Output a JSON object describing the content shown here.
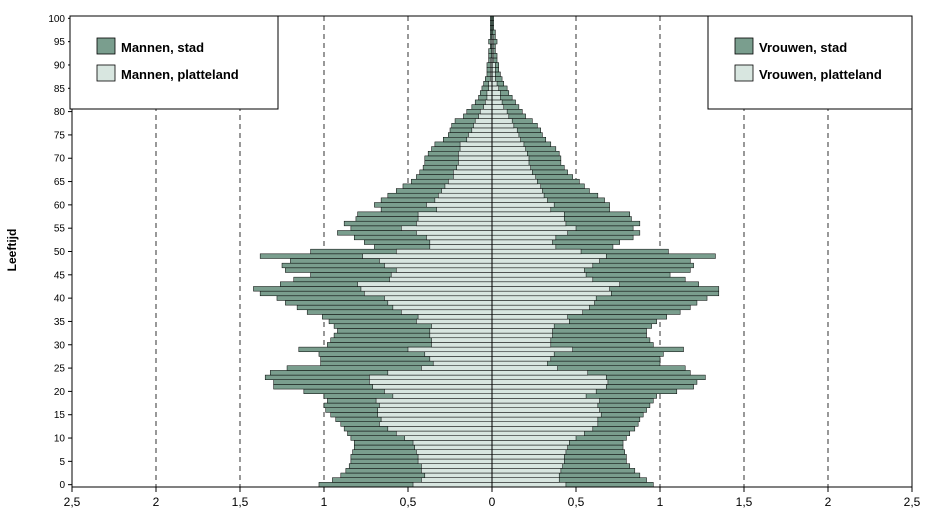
{
  "chart_data": {
    "type": "bar",
    "orientation": "horizontal",
    "layout": "population-pyramid",
    "ylabel": "Leeftijd",
    "y_ticks": [
      "0",
      "5",
      "10",
      "15",
      "20",
      "25",
      "30",
      "35",
      "40",
      "45",
      "50",
      "55",
      "60",
      "65",
      "70",
      "75",
      "80",
      "85",
      "90",
      "95",
      "100"
    ],
    "x_ticks_left": [
      "2,5",
      "2",
      "1,5",
      "1",
      "0,5",
      "0"
    ],
    "x_ticks_right": [
      "0,5",
      "1",
      "1,5",
      "2",
      "2,5"
    ],
    "xlim": [
      -2.5,
      2.5
    ],
    "ylim": [
      0,
      100
    ],
    "grid": "vertical dashed lines at 0.5 intervals",
    "legend_left": [
      {
        "label": "Mannen, stad",
        "color": "#7a9e8e"
      },
      {
        "label": "Mannen, platteland",
        "color": "#d8e6e0"
      }
    ],
    "legend_right": [
      {
        "label": "Vrouwen, stad",
        "color": "#7a9e8e"
      },
      {
        "label": "Vrouwen, platteland",
        "color": "#d8e6e0"
      }
    ],
    "colors": {
      "stad": "#7a9e8e",
      "platteland": "#d8e6e0",
      "edge": "#000000"
    },
    "ages": [
      0,
      1,
      2,
      3,
      4,
      5,
      6,
      7,
      8,
      9,
      10,
      11,
      12,
      13,
      14,
      15,
      16,
      17,
      18,
      19,
      20,
      21,
      22,
      23,
      24,
      25,
      26,
      27,
      28,
      29,
      30,
      31,
      32,
      33,
      34,
      35,
      36,
      37,
      38,
      39,
      40,
      41,
      42,
      43,
      44,
      45,
      46,
      47,
      48,
      49,
      50,
      51,
      52,
      53,
      54,
      55,
      56,
      57,
      58,
      59,
      60,
      61,
      62,
      63,
      64,
      65,
      66,
      67,
      68,
      69,
      70,
      71,
      72,
      73,
      74,
      75,
      76,
      77,
      78,
      79,
      80,
      81,
      82,
      83,
      84,
      85,
      86,
      87,
      88,
      89,
      90,
      91,
      92,
      93,
      94,
      95,
      96,
      97,
      98,
      99,
      100
    ],
    "series": [
      {
        "name": "Mannen, stad",
        "side": "left",
        "values": [
          1.03,
          0.95,
          0.9,
          0.87,
          0.85,
          0.84,
          0.84,
          0.83,
          0.82,
          0.82,
          0.84,
          0.86,
          0.88,
          0.9,
          0.93,
          0.96,
          0.99,
          1.0,
          0.98,
          1.0,
          1.12,
          1.3,
          1.3,
          1.35,
          1.32,
          1.22,
          1.02,
          1.02,
          1.03,
          1.15,
          0.98,
          0.96,
          0.94,
          0.92,
          0.94,
          0.97,
          1.01,
          1.1,
          1.16,
          1.23,
          1.28,
          1.38,
          1.42,
          1.26,
          1.18,
          1.08,
          1.23,
          1.25,
          1.2,
          1.38,
          1.08,
          0.7,
          0.76,
          0.82,
          0.92,
          0.84,
          0.88,
          0.81,
          0.8,
          0.66,
          0.7,
          0.66,
          0.62,
          0.57,
          0.53,
          0.48,
          0.45,
          0.43,
          0.41,
          0.4,
          0.4,
          0.38,
          0.36,
          0.34,
          0.29,
          0.26,
          0.25,
          0.24,
          0.22,
          0.17,
          0.15,
          0.12,
          0.1,
          0.08,
          0.07,
          0.06,
          0.05,
          0.04,
          0.03,
          0.03,
          0.03,
          0.02,
          0.02,
          0.02,
          0.01,
          0.02,
          0.01,
          0.01,
          0.01,
          0.01,
          0.01
        ]
      },
      {
        "name": "Mannen, platteland",
        "side": "left",
        "values": [
          0.47,
          0.42,
          0.4,
          0.42,
          0.42,
          0.44,
          0.44,
          0.45,
          0.46,
          0.47,
          0.52,
          0.57,
          0.62,
          0.67,
          0.66,
          0.68,
          0.68,
          0.67,
          0.69,
          0.59,
          0.64,
          0.71,
          0.73,
          0.73,
          0.62,
          0.42,
          0.35,
          0.37,
          0.4,
          0.5,
          0.36,
          0.36,
          0.37,
          0.37,
          0.36,
          0.45,
          0.44,
          0.54,
          0.59,
          0.62,
          0.64,
          0.76,
          0.78,
          0.8,
          0.61,
          0.6,
          0.57,
          0.64,
          0.67,
          0.77,
          0.57,
          0.37,
          0.37,
          0.39,
          0.45,
          0.54,
          0.45,
          0.44,
          0.44,
          0.33,
          0.39,
          0.34,
          0.32,
          0.3,
          0.28,
          0.26,
          0.23,
          0.23,
          0.21,
          0.2,
          0.2,
          0.2,
          0.19,
          0.19,
          0.15,
          0.14,
          0.12,
          0.11,
          0.1,
          0.08,
          0.07,
          0.05,
          0.04,
          0.03,
          0.03,
          0.02,
          0.02,
          0.01,
          0.01,
          0.01,
          0.01,
          0.01,
          0.0,
          0.0,
          0.0,
          0.01,
          0.0,
          0.0,
          0.0,
          0.0,
          0.0
        ]
      },
      {
        "name": "Vrouwen, stad",
        "side": "right",
        "values": [
          0.96,
          0.92,
          0.88,
          0.85,
          0.82,
          0.8,
          0.8,
          0.79,
          0.78,
          0.78,
          0.8,
          0.82,
          0.85,
          0.87,
          0.88,
          0.9,
          0.92,
          0.94,
          0.96,
          0.98,
          1.1,
          1.2,
          1.22,
          1.27,
          1.18,
          1.15,
          1.0,
          1.0,
          1.02,
          1.14,
          0.96,
          0.94,
          0.92,
          0.92,
          0.95,
          0.98,
          1.04,
          1.12,
          1.18,
          1.22,
          1.28,
          1.35,
          1.35,
          1.23,
          1.15,
          1.06,
          1.18,
          1.2,
          1.18,
          1.33,
          1.05,
          0.72,
          0.76,
          0.84,
          0.88,
          0.84,
          0.88,
          0.83,
          0.82,
          0.7,
          0.7,
          0.67,
          0.63,
          0.58,
          0.55,
          0.52,
          0.48,
          0.45,
          0.43,
          0.41,
          0.41,
          0.4,
          0.38,
          0.35,
          0.32,
          0.3,
          0.29,
          0.27,
          0.24,
          0.2,
          0.18,
          0.16,
          0.14,
          0.12,
          0.1,
          0.09,
          0.07,
          0.06,
          0.05,
          0.04,
          0.04,
          0.03,
          0.03,
          0.02,
          0.02,
          0.03,
          0.02,
          0.02,
          0.01,
          0.01,
          0.01
        ]
      },
      {
        "name": "Vrouwen, platteland",
        "side": "right",
        "values": [
          0.44,
          0.4,
          0.4,
          0.41,
          0.42,
          0.43,
          0.43,
          0.44,
          0.45,
          0.46,
          0.5,
          0.55,
          0.6,
          0.63,
          0.63,
          0.65,
          0.64,
          0.63,
          0.64,
          0.56,
          0.62,
          0.68,
          0.69,
          0.68,
          0.57,
          0.39,
          0.33,
          0.35,
          0.37,
          0.48,
          0.35,
          0.35,
          0.36,
          0.36,
          0.37,
          0.46,
          0.45,
          0.54,
          0.58,
          0.61,
          0.62,
          0.71,
          0.7,
          0.76,
          0.6,
          0.56,
          0.55,
          0.6,
          0.64,
          0.68,
          0.53,
          0.38,
          0.36,
          0.38,
          0.45,
          0.5,
          0.44,
          0.43,
          0.43,
          0.35,
          0.37,
          0.33,
          0.31,
          0.3,
          0.29,
          0.27,
          0.26,
          0.24,
          0.23,
          0.22,
          0.22,
          0.21,
          0.2,
          0.19,
          0.17,
          0.16,
          0.15,
          0.13,
          0.12,
          0.1,
          0.09,
          0.07,
          0.06,
          0.05,
          0.05,
          0.04,
          0.03,
          0.02,
          0.02,
          0.02,
          0.02,
          0.01,
          0.01,
          0.01,
          0.01,
          0.01,
          0.01,
          0.0,
          0.0,
          0.0,
          0.0
        ]
      }
    ]
  }
}
